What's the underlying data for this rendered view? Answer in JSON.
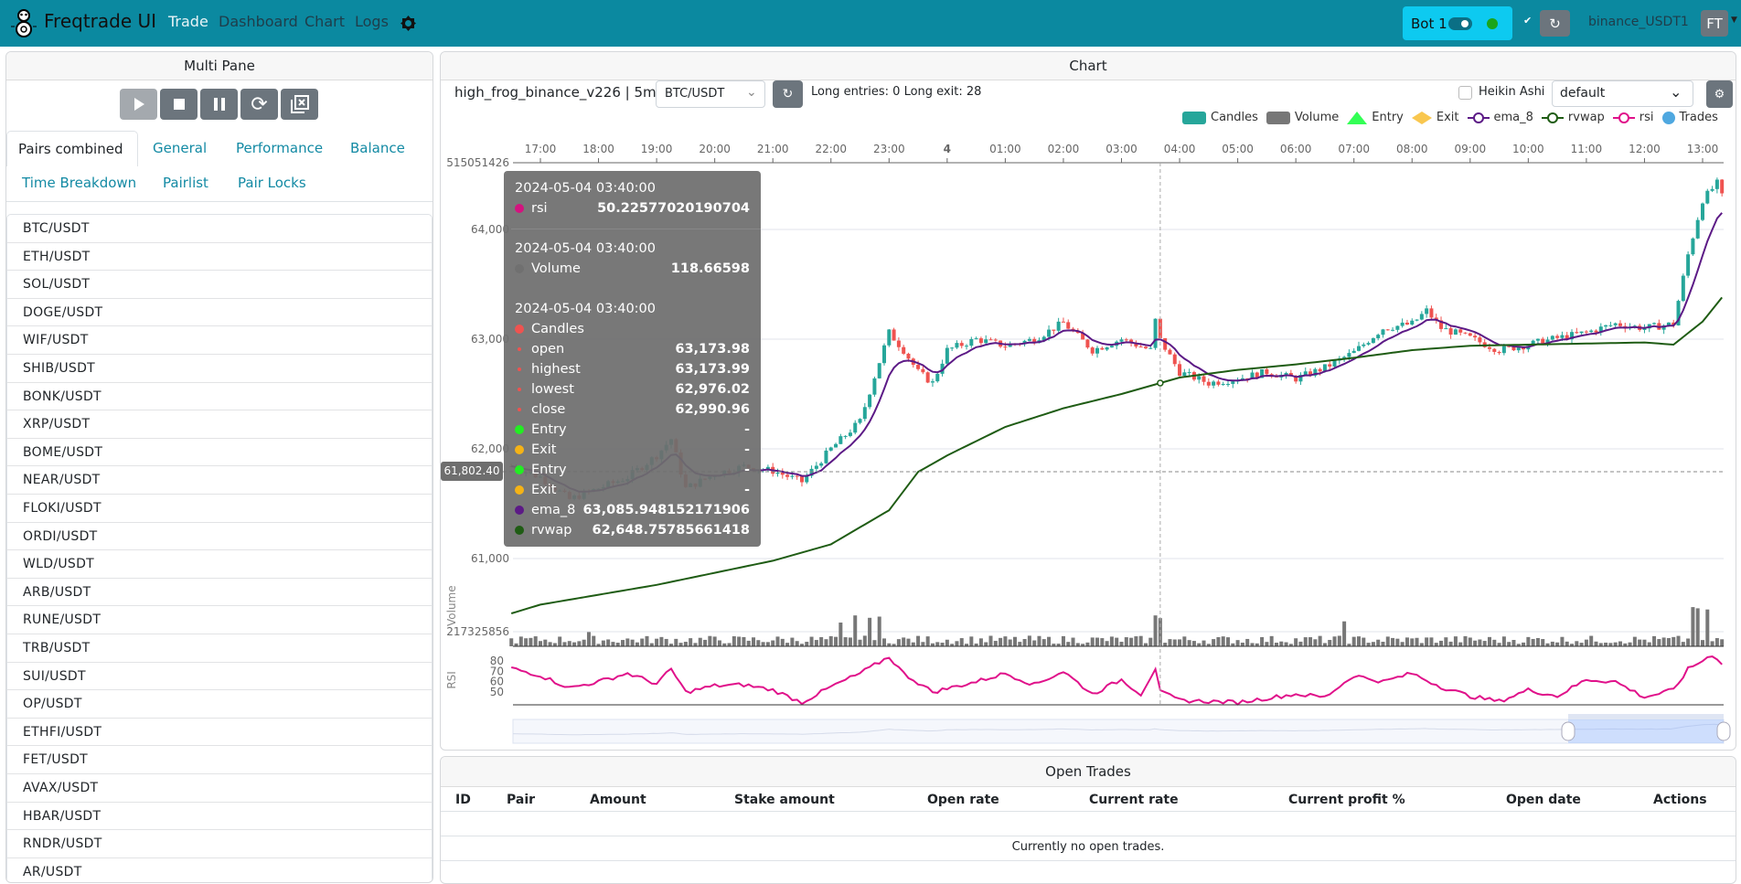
{
  "navbar": {
    "brand": "Freqtrade UI",
    "links": [
      "Trade",
      "Dashboard",
      "Chart",
      "Logs"
    ],
    "bot_name": "Bot 1",
    "bot_online": true,
    "exchange": "binance_USDT1",
    "user_initials": "FT",
    "colors": {
      "navbar": "#0b89a0",
      "bot_badge": "#0dcaf0",
      "online": "#1aa51a"
    }
  },
  "left": {
    "title": "Multi Pane",
    "controls": [
      "play-icon",
      "stop-icon",
      "pause-icon",
      "reload-icon",
      "force-exit-icon"
    ],
    "tabs": [
      "Pairs combined",
      "General",
      "Performance",
      "Balance",
      "Time Breakdown",
      "Pairlist",
      "Pair Locks"
    ],
    "active_tab": "Pairs combined",
    "pairs": [
      "BTC/USDT",
      "ETH/USDT",
      "SOL/USDT",
      "DOGE/USDT",
      "WIF/USDT",
      "SHIB/USDT",
      "BONK/USDT",
      "XRP/USDT",
      "BOME/USDT",
      "NEAR/USDT",
      "FLOKI/USDT",
      "ORDI/USDT",
      "WLD/USDT",
      "ARB/USDT",
      "RUNE/USDT",
      "TRB/USDT",
      "SUI/USDT",
      "OP/USDT",
      "ETHFI/USDT",
      "FET/USDT",
      "AVAX/USDT",
      "HBAR/USDT",
      "RNDR/USDT",
      "AR/USDT"
    ]
  },
  "chart": {
    "title": "Chart",
    "strategy": "high_frog_binance_v226 | 5m",
    "pair": "BTC/USDT",
    "signals": "Long entries: 0  Long exit: 28",
    "heikin_ashi_label": "Heikin Ashi",
    "heikin_ashi": false,
    "plot_config": "default",
    "legend": [
      {
        "label": "Candles",
        "color": "#26a69a"
      },
      {
        "label": "Volume",
        "color": "#777777"
      },
      {
        "label": "Entry",
        "color": "#33ff55"
      },
      {
        "label": "Exit",
        "color": "#f9c74f"
      },
      {
        "label": "ema_8",
        "color": "#5c1a86"
      },
      {
        "label": "rvwap",
        "color": "#1f5c14"
      },
      {
        "label": "rsi",
        "color": "#e0118a"
      },
      {
        "label": "Trades",
        "color": "#4fa8e0"
      }
    ],
    "crosshair_price": "61,802.40",
    "volume_axis_label": "Volume",
    "rsi_axis_label": "RSI",
    "tooltip": {
      "time": "2024-05-04 03:40:00",
      "rsi_label": "rsi",
      "rsi": "50.22577020190704",
      "volume_label": "Volume",
      "volume": "118.66598",
      "candles_label": "Candles",
      "ohlc": [
        {
          "label": "open",
          "value": "63,173.98"
        },
        {
          "label": "highest",
          "value": "63,173.99"
        },
        {
          "label": "lowest",
          "value": "62,976.02"
        },
        {
          "label": "close",
          "value": "62,990.96"
        }
      ],
      "signals": [
        {
          "label": "Entry",
          "value": "-",
          "color": "#22ee22"
        },
        {
          "label": "Exit",
          "value": "-",
          "color": "#f5b316"
        },
        {
          "label": "Entry",
          "value": "-",
          "color": "#22ee22"
        },
        {
          "label": "Exit",
          "value": "-",
          "color": "#f5b316"
        }
      ],
      "ema_label": "ema_8",
      "ema": "63,085.948152171906",
      "rvwap_label": "rvwap",
      "rvwap": "62,648.75785661418"
    }
  },
  "chart_data": {
    "type": "candlestick",
    "x_tick_labels": [
      "17:00",
      "18:00",
      "19:00",
      "20:00",
      "21:00",
      "22:00",
      "23:00",
      "4",
      "01:00",
      "02:00",
      "03:00",
      "04:00",
      "05:00",
      "06:00",
      "07:00",
      "08:00",
      "09:00",
      "10:00",
      "11:00",
      "12:00",
      "13:00"
    ],
    "y_tick_labels": [
      "64,000",
      "63,000",
      "62,000",
      "61,000"
    ],
    "volume_tick_labels": [
      "515051426",
      "217325856"
    ],
    "rsi_tick_labels": [
      "80",
      "70",
      "60",
      "50"
    ],
    "close": [
      [
        "2024-05-03T16:30",
        61842
      ],
      [
        "2024-05-03T17:00",
        61742
      ],
      [
        "2024-05-03T17:30",
        61540
      ],
      [
        "2024-05-03T18:00",
        61640
      ],
      [
        "2024-05-03T18:30",
        61740
      ],
      [
        "2024-05-03T19:00",
        61940
      ],
      [
        "2024-05-03T19:15",
        62090
      ],
      [
        "2024-05-03T19:30",
        61640
      ],
      [
        "2024-05-03T20:00",
        61770
      ],
      [
        "2024-05-03T20:30",
        61840
      ],
      [
        "2024-05-03T21:00",
        61800
      ],
      [
        "2024-05-03T21:30",
        61700
      ],
      [
        "2024-05-03T22:00",
        62000
      ],
      [
        "2024-05-03T22:30",
        62250
      ],
      [
        "2024-05-03T22:45",
        62660
      ],
      [
        "2024-05-03T23:00",
        63060
      ],
      [
        "2024-05-03T23:15",
        62900
      ],
      [
        "2024-05-03T23:30",
        62700
      ],
      [
        "2024-05-03T23:45",
        62600
      ],
      [
        "2024-05-04T00:00",
        62900
      ],
      [
        "2024-05-04T00:30",
        63000
      ],
      [
        "2024-05-04T01:00",
        62940
      ],
      [
        "2024-05-04T01:30",
        63000
      ],
      [
        "2024-05-04T02:00",
        63150
      ],
      [
        "2024-05-04T02:30",
        62900
      ],
      [
        "2024-05-04T03:00",
        63000
      ],
      [
        "2024-05-04T03:30",
        62900
      ],
      [
        "2024-05-04T03:35",
        63170
      ],
      [
        "2024-05-04T03:40",
        62991
      ],
      [
        "2024-05-04T04:00",
        62700
      ],
      [
        "2024-05-04T04:30",
        62600
      ],
      [
        "2024-05-04T05:00",
        62640
      ],
      [
        "2024-05-04T05:30",
        62700
      ],
      [
        "2024-05-04T06:00",
        62640
      ],
      [
        "2024-05-04T06:30",
        62740
      ],
      [
        "2024-05-04T07:00",
        62880
      ],
      [
        "2024-05-04T07:30",
        63100
      ],
      [
        "2024-05-04T08:00",
        63140
      ],
      [
        "2024-05-04T08:15",
        63260
      ],
      [
        "2024-05-04T08:30",
        63100
      ],
      [
        "2024-05-04T09:00",
        63010
      ],
      [
        "2024-05-04T09:30",
        62900
      ],
      [
        "2024-05-04T10:00",
        62950
      ],
      [
        "2024-05-04T10:30",
        63010
      ],
      [
        "2024-05-04T11:00",
        63060
      ],
      [
        "2024-05-04T11:30",
        63140
      ],
      [
        "2024-05-04T12:00",
        63100
      ],
      [
        "2024-05-04T12:30",
        63140
      ],
      [
        "2024-05-04T12:45",
        63770
      ],
      [
        "2024-05-04T13:00",
        64270
      ],
      [
        "2024-05-04T13:15",
        64420
      ],
      [
        "2024-05-04T13:20",
        64300
      ]
    ],
    "rvwap": [
      [
        "2024-05-03T16:30",
        60500
      ],
      [
        "2024-05-03T17:00",
        60580
      ],
      [
        "2024-05-03T19:00",
        60760
      ],
      [
        "2024-05-03T21:00",
        60980
      ],
      [
        "2024-05-03T22:00",
        61130
      ],
      [
        "2024-05-03T23:00",
        61440
      ],
      [
        "2024-05-03T23:30",
        61790
      ],
      [
        "2024-05-04T00:00",
        61940
      ],
      [
        "2024-05-04T01:00",
        62200
      ],
      [
        "2024-05-04T02:00",
        62370
      ],
      [
        "2024-05-04T03:00",
        62500
      ],
      [
        "2024-05-04T04:00",
        62650
      ],
      [
        "2024-05-04T05:00",
        62720
      ],
      [
        "2024-05-04T06:00",
        62770
      ],
      [
        "2024-05-04T07:00",
        62830
      ],
      [
        "2024-05-04T08:00",
        62900
      ],
      [
        "2024-05-04T09:00",
        62940
      ],
      [
        "2024-05-04T10:00",
        62950
      ],
      [
        "2024-05-04T11:00",
        62960
      ],
      [
        "2024-05-04T12:00",
        62970
      ],
      [
        "2024-05-04T12:30",
        62950
      ],
      [
        "2024-05-04T13:00",
        63160
      ],
      [
        "2024-05-04T13:20",
        63380
      ]
    ],
    "rsi": [
      [
        "2024-05-03T16:30",
        73
      ],
      [
        "2024-05-03T17:00",
        66
      ],
      [
        "2024-05-03T17:30",
        54
      ],
      [
        "2024-05-03T18:00",
        60
      ],
      [
        "2024-05-03T18:30",
        68
      ],
      [
        "2024-05-03T19:00",
        58
      ],
      [
        "2024-05-03T19:15",
        72
      ],
      [
        "2024-05-03T19:30",
        50
      ],
      [
        "2024-05-03T20:00",
        56
      ],
      [
        "2024-05-03T20:30",
        57
      ],
      [
        "2024-05-03T21:00",
        52
      ],
      [
        "2024-05-03T21:30",
        40
      ],
      [
        "2024-05-03T22:00",
        55
      ],
      [
        "2024-05-03T22:30",
        68
      ],
      [
        "2024-05-03T23:00",
        84
      ],
      [
        "2024-05-03T23:15",
        68
      ],
      [
        "2024-05-03T23:45",
        50
      ],
      [
        "2024-05-04T00:30",
        60
      ],
      [
        "2024-05-04T01:00",
        68
      ],
      [
        "2024-05-04T01:30",
        57
      ],
      [
        "2024-05-04T02:00",
        70
      ],
      [
        "2024-05-04T02:30",
        48
      ],
      [
        "2024-05-04T03:00",
        62
      ],
      [
        "2024-05-04T03:20",
        48
      ],
      [
        "2024-05-04T03:35",
        73
      ],
      [
        "2024-05-04T03:40",
        50
      ],
      [
        "2024-05-04T04:00",
        42
      ],
      [
        "2024-05-04T05:00",
        40
      ],
      [
        "2024-05-04T06:00",
        48
      ],
      [
        "2024-05-04T06:30",
        45
      ],
      [
        "2024-05-04T07:00",
        66
      ],
      [
        "2024-05-04T07:30",
        60
      ],
      [
        "2024-05-04T08:00",
        68
      ],
      [
        "2024-05-04T08:30",
        55
      ],
      [
        "2024-05-04T09:00",
        46
      ],
      [
        "2024-05-04T09:30",
        41
      ],
      [
        "2024-05-04T10:00",
        52
      ],
      [
        "2024-05-04T10:30",
        46
      ],
      [
        "2024-05-04T11:00",
        62
      ],
      [
        "2024-05-04T11:30",
        60
      ],
      [
        "2024-05-04T12:00",
        45
      ],
      [
        "2024-05-04T12:30",
        52
      ],
      [
        "2024-05-04T12:45",
        72
      ],
      [
        "2024-05-04T13:10",
        86
      ],
      [
        "2024-05-04T13:20",
        78
      ]
    ],
    "volume_spikes": [
      [
        "2024-05-03T17:50",
        60
      ],
      [
        "2024-05-03T22:10",
        100
      ],
      [
        "2024-05-03T22:25",
        130
      ],
      [
        "2024-05-03T22:40",
        120
      ],
      [
        "2024-05-03T22:50",
        125
      ],
      [
        "2024-05-04T03:35",
        130
      ],
      [
        "2024-05-04T03:40",
        118.66598
      ],
      [
        "2024-05-04T06:50",
        105
      ],
      [
        "2024-05-04T12:50",
        165
      ],
      [
        "2024-05-04T12:55",
        160
      ],
      [
        "2024-05-04T13:05",
        155
      ]
    ],
    "crosshair_time": "2024-05-04T03:40"
  },
  "open_trades": {
    "title": "Open Trades",
    "columns": [
      "ID",
      "Pair",
      "Amount",
      "Stake amount",
      "Open rate",
      "Current rate",
      "Current profit %",
      "Open date",
      "Actions"
    ],
    "empty_text": "Currently no open trades."
  }
}
